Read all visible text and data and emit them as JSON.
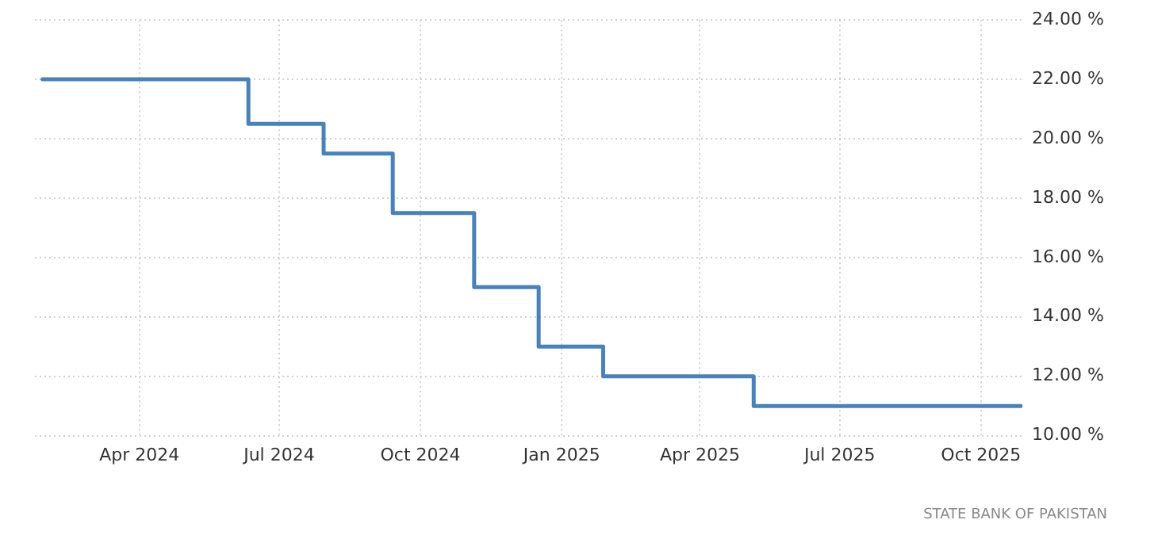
{
  "chart_data": {
    "type": "step",
    "x": [
      "2024-01-29",
      "2024-06-11",
      "2024-07-30",
      "2024-09-13",
      "2024-11-05",
      "2024-12-17",
      "2025-01-28",
      "2025-05-06",
      "2025-10-27"
    ],
    "series": [
      {
        "color": "#4a82b8",
        "values": [
          22,
          20.5,
          19.5,
          17.5,
          15,
          13,
          12,
          11,
          11
        ]
      }
    ],
    "xlim": [
      "2024-01-24",
      "2025-10-28"
    ],
    "xticks": [
      {
        "value": "2024-04-01",
        "label": "Apr 2024"
      },
      {
        "value": "2024-07-01",
        "label": "Jul 2024"
      },
      {
        "value": "2024-10-01",
        "label": "Oct 2024"
      },
      {
        "value": "2025-01-01",
        "label": "Jan 2025"
      },
      {
        "value": "2025-04-01",
        "label": "Apr 2025"
      },
      {
        "value": "2025-07-01",
        "label": "Jul 2025"
      },
      {
        "value": "2025-10-01",
        "label": "Oct 2025"
      }
    ],
    "ylim": [
      10,
      24
    ],
    "yticks": [
      {
        "value": 10,
        "label": "10.00 %"
      },
      {
        "value": 12,
        "label": "12.00 %"
      },
      {
        "value": 14,
        "label": "14.00 %"
      },
      {
        "value": 16,
        "label": "16.00 %"
      },
      {
        "value": 18,
        "label": "18.00 %"
      },
      {
        "value": 20,
        "label": "20.00 %"
      },
      {
        "value": 22,
        "label": "22.00 %"
      },
      {
        "value": 24,
        "label": "24.00 %"
      }
    ],
    "grid": true,
    "legend": false,
    "line_style": "solid",
    "marker": "none",
    "annotations": [
      "STATE BANK OF PAKISTAN"
    ]
  }
}
